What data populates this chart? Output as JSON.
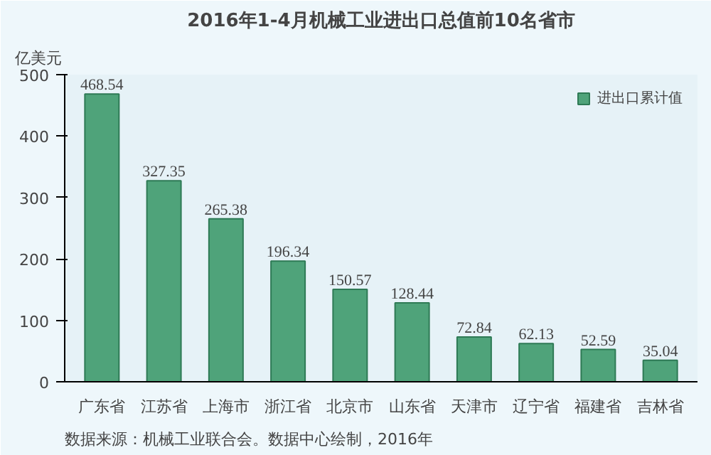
{
  "chart_data": {
    "type": "bar",
    "title": "2016年1-4月机械工业进出口总值前10名省市",
    "ylabel": "亿美元",
    "categories": [
      "广东省",
      "江苏省",
      "上海市",
      "浙江省",
      "北京市",
      "山东省",
      "天津市",
      "辽宁省",
      "福建省",
      "吉林省"
    ],
    "series": [
      {
        "name": "进出口累计值",
        "color": "#4fa37a",
        "values": [
          468.54,
          327.35,
          265.38,
          196.34,
          150.57,
          128.44,
          72.84,
          62.13,
          52.59,
          35.04
        ]
      }
    ],
    "ylim": [
      0,
      500
    ],
    "yticks": [
      0,
      100,
      200,
      300,
      400,
      500
    ],
    "data_labels": true,
    "legend": "top right",
    "annotations": [
      "数据来源：机械工业联合会。数据中心绘制，2016年"
    ]
  }
}
